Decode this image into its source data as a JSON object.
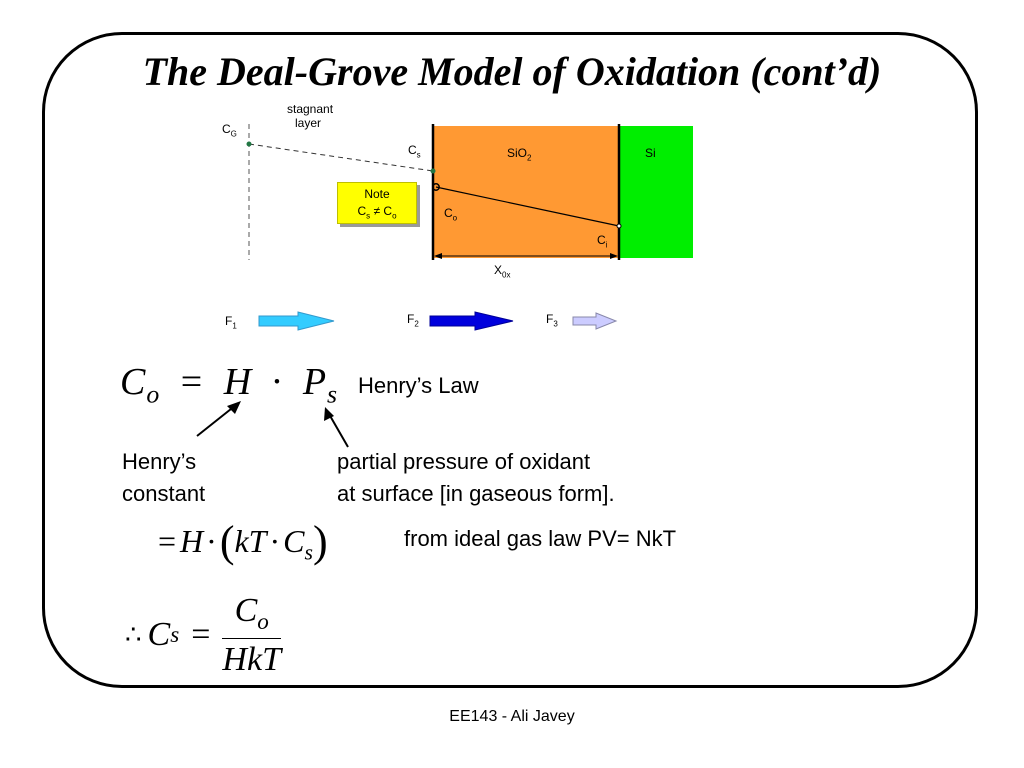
{
  "slide": {
    "title": "The Deal-Grove Model of Oxidation (cont’d)",
    "footer": "EE143 - Ali Javey"
  },
  "diagram": {
    "stagnant_label_1": "stagnant",
    "stagnant_label_2": "layer",
    "cg": {
      "main": "C",
      "sub": "G"
    },
    "cs": {
      "main": "C",
      "sub": "s"
    },
    "co": {
      "main": "C",
      "sub": "o"
    },
    "ci": {
      "main": "C",
      "sub": "i"
    },
    "sio2": {
      "main": "SiO",
      "sub": "2"
    },
    "si": "Si",
    "x0x": {
      "main": "X",
      "sub": "0x"
    },
    "note": {
      "title": "Note",
      "c1": "C",
      "s1": "s",
      "neq": "≠",
      "c2": "C",
      "s2": "o"
    },
    "colors": {
      "oxide": "#ff9933",
      "silicon": "#00ee00",
      "note": "#ffff00"
    }
  },
  "fluxes": [
    {
      "main": "F",
      "sub": "1",
      "color": "#33ccff"
    },
    {
      "main": "F",
      "sub": "2",
      "color": "#0000dd"
    },
    {
      "main": "F",
      "sub": "3",
      "color": "#ccccff"
    }
  ],
  "equations": {
    "eq1": {
      "lhs": "C",
      "lhs_sub": "o",
      "eq": "=",
      "h": "H",
      "dot": "·",
      "p": "P",
      "p_sub": "s"
    },
    "henrys_law": "Henry’s Law",
    "henry_label_1": "Henry’s",
    "henry_label_2": "constant",
    "partial_1": "partial pressure of oxidant",
    "partial_2": "at surface [in gaseous form].",
    "eq2": {
      "eq": "=",
      "h": "H",
      "dot1": "·",
      "lp": "(",
      "kt": "kT",
      "dot2": "·",
      "c": "C",
      "c_sub": "s",
      "rp": ")"
    },
    "ideal_gas": "from ideal gas law PV= NkT",
    "eq3": {
      "therefore": "∴",
      "c": "C",
      "c_sub": "s",
      "eq": "=",
      "num": "C",
      "num_sub": "o",
      "den": "HkT"
    }
  }
}
